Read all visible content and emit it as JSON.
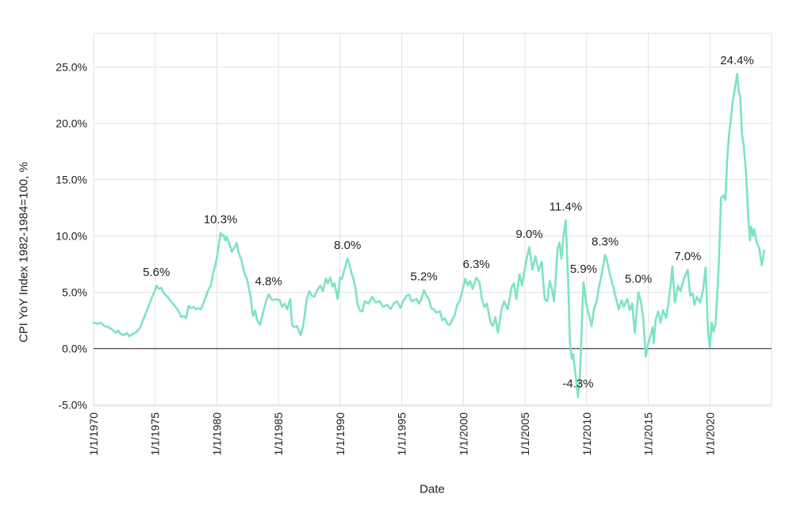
{
  "chart_data": {
    "type": "line",
    "title": "",
    "xlabel": "Date",
    "ylabel": "CPI YoY Index 1982-1984=100, %",
    "series_name": "CPI YoY",
    "line_color": "#7de3c4",
    "grid_color": "#e2e2e2",
    "zero_line_color": "#545454",
    "background_color": "#ffffff",
    "text_color": "#212121",
    "grid": true,
    "legend": "none",
    "xlim": [
      1970,
      2025
    ],
    "ylim": [
      -5.1,
      28.0
    ],
    "x_ticks": [
      {
        "year": 1970,
        "label": "1/1/1970"
      },
      {
        "year": 1975,
        "label": "1/1/1975"
      },
      {
        "year": 1980,
        "label": "1/1/1980"
      },
      {
        "year": 1985,
        "label": "1/1/1985"
      },
      {
        "year": 1990,
        "label": "1/1/1990"
      },
      {
        "year": 1995,
        "label": "1/1/1995"
      },
      {
        "year": 2000,
        "label": "1/1/2000"
      },
      {
        "year": 2005,
        "label": "1/1/2005"
      },
      {
        "year": 2010,
        "label": "1/1/2010"
      },
      {
        "year": 2015,
        "label": "1/1/2015"
      },
      {
        "year": 2020,
        "label": "1/1/2020"
      }
    ],
    "y_ticks": [
      {
        "value": -5,
        "label": "-5.0%"
      },
      {
        "value": 0,
        "label": "0.0%"
      },
      {
        "value": 5,
        "label": "5.0%"
      },
      {
        "value": 10,
        "label": "10.0%"
      },
      {
        "value": 15,
        "label": "15.0%"
      },
      {
        "value": 20,
        "label": "20.0%"
      },
      {
        "value": 25,
        "label": "25.0%"
      }
    ],
    "annotations": [
      {
        "x": 1975.1,
        "y": 5.6,
        "label": "5.6%"
      },
      {
        "x": 1980.3,
        "y": 10.3,
        "label": "10.3%"
      },
      {
        "x": 1984.2,
        "y": 4.8,
        "label": "4.8%"
      },
      {
        "x": 1990.6,
        "y": 8.0,
        "label": "8.0%"
      },
      {
        "x": 1996.8,
        "y": 5.2,
        "label": "5.2%"
      },
      {
        "x": 2001.05,
        "y": 6.3,
        "label": "6.3%"
      },
      {
        "x": 2005.35,
        "y": 9.0,
        "label": "9.0%"
      },
      {
        "x": 2008.3,
        "y": 11.4,
        "label": "11.4%"
      },
      {
        "x": 2009.3,
        "y": -4.3,
        "label": "-4.3%"
      },
      {
        "x": 2009.75,
        "y": 5.9,
        "label": "5.9%"
      },
      {
        "x": 2011.5,
        "y": 8.3,
        "label": "8.3%"
      },
      {
        "x": 2014.2,
        "y": 5.0,
        "label": "5.0%"
      },
      {
        "x": 2018.2,
        "y": 7.0,
        "label": "7.0%"
      },
      {
        "x": 2022.2,
        "y": 24.4,
        "label": "24.4%"
      }
    ],
    "points": [
      [
        1970.0,
        2.3
      ],
      [
        1970.3,
        2.2
      ],
      [
        1970.6,
        2.3
      ],
      [
        1970.9,
        2.0
      ],
      [
        1971.2,
        1.9
      ],
      [
        1971.5,
        1.7
      ],
      [
        1971.8,
        1.4
      ],
      [
        1972.0,
        1.6
      ],
      [
        1972.2,
        1.3
      ],
      [
        1972.5,
        1.2
      ],
      [
        1972.7,
        1.4
      ],
      [
        1972.9,
        1.1
      ],
      [
        1973.2,
        1.3
      ],
      [
        1973.5,
        1.5
      ],
      [
        1973.8,
        1.9
      ],
      [
        1974.0,
        2.5
      ],
      [
        1974.3,
        3.3
      ],
      [
        1974.5,
        3.9
      ],
      [
        1974.8,
        4.7
      ],
      [
        1975.0,
        5.2
      ],
      [
        1975.1,
        5.6
      ],
      [
        1975.3,
        5.3
      ],
      [
        1975.5,
        5.4
      ],
      [
        1975.7,
        4.9
      ],
      [
        1976.0,
        4.6
      ],
      [
        1976.2,
        4.3
      ],
      [
        1976.5,
        3.9
      ],
      [
        1976.8,
        3.5
      ],
      [
        1977.0,
        3.1
      ],
      [
        1977.1,
        2.8
      ],
      [
        1977.3,
        2.9
      ],
      [
        1977.5,
        2.7
      ],
      [
        1977.7,
        3.8
      ],
      [
        1977.9,
        3.6
      ],
      [
        1978.1,
        3.7
      ],
      [
        1978.3,
        3.5
      ],
      [
        1978.5,
        3.6
      ],
      [
        1978.7,
        3.5
      ],
      [
        1978.9,
        4.0
      ],
      [
        1979.1,
        4.6
      ],
      [
        1979.3,
        5.2
      ],
      [
        1979.5,
        5.6
      ],
      [
        1979.7,
        6.7
      ],
      [
        1979.9,
        7.5
      ],
      [
        1980.0,
        8.1
      ],
      [
        1980.1,
        8.8
      ],
      [
        1980.2,
        9.6
      ],
      [
        1980.3,
        10.3
      ],
      [
        1980.45,
        10.0
      ],
      [
        1980.55,
        10.1
      ],
      [
        1980.7,
        9.6
      ],
      [
        1980.8,
        9.9
      ],
      [
        1981.0,
        9.4
      ],
      [
        1981.2,
        8.6
      ],
      [
        1981.4,
        8.9
      ],
      [
        1981.6,
        9.4
      ],
      [
        1981.8,
        8.4
      ],
      [
        1982.0,
        7.9
      ],
      [
        1982.1,
        7.3
      ],
      [
        1982.3,
        6.5
      ],
      [
        1982.45,
        6.2
      ],
      [
        1982.6,
        5.3
      ],
      [
        1982.75,
        4.6
      ],
      [
        1982.85,
        3.4
      ],
      [
        1982.95,
        2.9
      ],
      [
        1983.1,
        3.4
      ],
      [
        1983.25,
        2.6
      ],
      [
        1983.4,
        2.3
      ],
      [
        1983.5,
        2.1
      ],
      [
        1983.7,
        3.0
      ],
      [
        1984.0,
        4.2
      ],
      [
        1984.2,
        4.8
      ],
      [
        1984.5,
        4.3
      ],
      [
        1984.8,
        4.4
      ],
      [
        1985.1,
        4.3
      ],
      [
        1985.3,
        3.7
      ],
      [
        1985.5,
        4.0
      ],
      [
        1985.7,
        3.5
      ],
      [
        1985.95,
        4.4
      ],
      [
        1986.1,
        2.1
      ],
      [
        1986.3,
        1.9
      ],
      [
        1986.5,
        2.0
      ],
      [
        1986.8,
        1.2
      ],
      [
        1987.0,
        2.0
      ],
      [
        1987.3,
        4.4
      ],
      [
        1987.5,
        5.1
      ],
      [
        1987.7,
        4.7
      ],
      [
        1987.9,
        4.6
      ],
      [
        1988.2,
        5.3
      ],
      [
        1988.4,
        5.6
      ],
      [
        1988.6,
        5.1
      ],
      [
        1988.85,
        6.2
      ],
      [
        1989.0,
        5.8
      ],
      [
        1989.2,
        6.3
      ],
      [
        1989.4,
        5.5
      ],
      [
        1989.55,
        5.8
      ],
      [
        1989.8,
        4.4
      ],
      [
        1990.0,
        6.3
      ],
      [
        1990.15,
        6.2
      ],
      [
        1990.35,
        7.0
      ],
      [
        1990.6,
        8.0
      ],
      [
        1990.75,
        7.5
      ],
      [
        1990.9,
        6.8
      ],
      [
        1991.1,
        6.1
      ],
      [
        1991.25,
        5.4
      ],
      [
        1991.4,
        4.0
      ],
      [
        1991.6,
        3.4
      ],
      [
        1991.8,
        3.3
      ],
      [
        1992.0,
        4.2
      ],
      [
        1992.3,
        4.0
      ],
      [
        1992.6,
        4.6
      ],
      [
        1992.9,
        4.1
      ],
      [
        1993.2,
        4.2
      ],
      [
        1993.5,
        3.7
      ],
      [
        1993.8,
        3.9
      ],
      [
        1994.1,
        3.5
      ],
      [
        1994.35,
        4.0
      ],
      [
        1994.6,
        4.2
      ],
      [
        1994.9,
        3.6
      ],
      [
        1995.1,
        4.2
      ],
      [
        1995.4,
        4.7
      ],
      [
        1995.6,
        4.8
      ],
      [
        1995.8,
        4.2
      ],
      [
        1996.0,
        4.3
      ],
      [
        1996.2,
        4.4
      ],
      [
        1996.4,
        4.0
      ],
      [
        1996.6,
        4.4
      ],
      [
        1996.8,
        5.2
      ],
      [
        1997.0,
        4.7
      ],
      [
        1997.2,
        4.4
      ],
      [
        1997.4,
        3.6
      ],
      [
        1997.6,
        3.5
      ],
      [
        1997.8,
        3.2
      ],
      [
        1998.1,
        3.3
      ],
      [
        1998.3,
        2.5
      ],
      [
        1998.5,
        2.7
      ],
      [
        1998.7,
        2.2
      ],
      [
        1998.9,
        2.1
      ],
      [
        1999.1,
        2.6
      ],
      [
        1999.3,
        3.0
      ],
      [
        1999.5,
        3.9
      ],
      [
        1999.7,
        4.2
      ],
      [
        1999.9,
        5.1
      ],
      [
        2000.15,
        6.2
      ],
      [
        2000.35,
        5.6
      ],
      [
        2000.55,
        6.0
      ],
      [
        2000.75,
        5.3
      ],
      [
        2001.05,
        6.3
      ],
      [
        2001.3,
        5.9
      ],
      [
        2001.5,
        4.4
      ],
      [
        2001.7,
        3.7
      ],
      [
        2001.9,
        4.0
      ],
      [
        2002.2,
        2.3
      ],
      [
        2002.4,
        2.0
      ],
      [
        2002.6,
        2.8
      ],
      [
        2002.8,
        1.4
      ],
      [
        2003.1,
        3.5
      ],
      [
        2003.3,
        4.2
      ],
      [
        2003.6,
        3.5
      ],
      [
        2003.9,
        5.4
      ],
      [
        2004.1,
        5.8
      ],
      [
        2004.3,
        4.4
      ],
      [
        2004.55,
        6.6
      ],
      [
        2004.75,
        5.6
      ],
      [
        2005.0,
        7.2
      ],
      [
        2005.2,
        8.3
      ],
      [
        2005.35,
        9.0
      ],
      [
        2005.6,
        7.0
      ],
      [
        2005.85,
        8.2
      ],
      [
        2006.1,
        6.9
      ],
      [
        2006.35,
        7.7
      ],
      [
        2006.6,
        4.4
      ],
      [
        2006.8,
        4.2
      ],
      [
        2007.0,
        6.0
      ],
      [
        2007.2,
        5.2
      ],
      [
        2007.35,
        4.2
      ],
      [
        2007.5,
        6.5
      ],
      [
        2007.65,
        8.9
      ],
      [
        2007.8,
        9.4
      ],
      [
        2007.95,
        8.0
      ],
      [
        2008.1,
        9.8
      ],
      [
        2008.3,
        11.4
      ],
      [
        2008.5,
        6.0
      ],
      [
        2008.65,
        0.5
      ],
      [
        2008.8,
        -0.9
      ],
      [
        2008.9,
        -0.5
      ],
      [
        2009.0,
        -1.4
      ],
      [
        2009.1,
        -2.3
      ],
      [
        2009.3,
        -4.3
      ],
      [
        2009.45,
        -2.3
      ],
      [
        2009.55,
        0.0
      ],
      [
        2009.65,
        3.5
      ],
      [
        2009.75,
        5.9
      ],
      [
        2009.95,
        4.2
      ],
      [
        2010.1,
        3.3
      ],
      [
        2010.25,
        2.8
      ],
      [
        2010.4,
        2.0
      ],
      [
        2010.6,
        3.5
      ],
      [
        2010.8,
        4.2
      ],
      [
        2011.0,
        5.5
      ],
      [
        2011.2,
        6.5
      ],
      [
        2011.5,
        8.3
      ],
      [
        2011.65,
        7.8
      ],
      [
        2011.9,
        6.5
      ],
      [
        2012.2,
        5.3
      ],
      [
        2012.6,
        3.5
      ],
      [
        2012.85,
        4.3
      ],
      [
        2013.0,
        3.7
      ],
      [
        2013.3,
        4.4
      ],
      [
        2013.5,
        3.4
      ],
      [
        2013.7,
        4.0
      ],
      [
        2013.9,
        1.4
      ],
      [
        2014.2,
        5.0
      ],
      [
        2014.4,
        4.2
      ],
      [
        2014.6,
        2.6
      ],
      [
        2014.8,
        -0.7
      ],
      [
        2015.0,
        0.5
      ],
      [
        2015.2,
        1.2
      ],
      [
        2015.35,
        1.9
      ],
      [
        2015.45,
        0.5
      ],
      [
        2015.6,
        2.6
      ],
      [
        2015.8,
        3.3
      ],
      [
        2016.0,
        2.3
      ],
      [
        2016.2,
        3.4
      ],
      [
        2016.45,
        2.7
      ],
      [
        2016.65,
        4.2
      ],
      [
        2016.8,
        5.5
      ],
      [
        2016.95,
        7.3
      ],
      [
        2017.15,
        4.1
      ],
      [
        2017.4,
        5.6
      ],
      [
        2017.6,
        5.1
      ],
      [
        2017.9,
        6.2
      ],
      [
        2018.2,
        7.0
      ],
      [
        2018.4,
        4.7
      ],
      [
        2018.6,
        4.9
      ],
      [
        2018.75,
        3.9
      ],
      [
        2018.95,
        4.6
      ],
      [
        2019.2,
        4.1
      ],
      [
        2019.45,
        5.2
      ],
      [
        2019.65,
        7.2
      ],
      [
        2019.85,
        1.5
      ],
      [
        2020.0,
        0.1
      ],
      [
        2020.15,
        2.3
      ],
      [
        2020.3,
        1.5
      ],
      [
        2020.45,
        2.2
      ],
      [
        2020.6,
        4.9
      ],
      [
        2020.75,
        8.2
      ],
      [
        2020.9,
        13.4
      ],
      [
        2021.1,
        13.6
      ],
      [
        2021.25,
        13.2
      ],
      [
        2021.4,
        16.7
      ],
      [
        2021.55,
        19.0
      ],
      [
        2021.7,
        20.4
      ],
      [
        2021.85,
        22.0
      ],
      [
        2022.0,
        22.9
      ],
      [
        2022.2,
        24.4
      ],
      [
        2022.35,
        22.7
      ],
      [
        2022.45,
        22.5
      ],
      [
        2022.6,
        19.0
      ],
      [
        2022.75,
        18.0
      ],
      [
        2022.95,
        15.3
      ],
      [
        2023.1,
        11.8
      ],
      [
        2023.25,
        9.6
      ],
      [
        2023.35,
        10.8
      ],
      [
        2023.5,
        10.0
      ],
      [
        2023.6,
        10.6
      ],
      [
        2023.8,
        9.4
      ],
      [
        2024.0,
        8.9
      ],
      [
        2024.2,
        7.4
      ],
      [
        2024.4,
        8.7
      ]
    ]
  },
  "axes": {
    "x_title": "Date",
    "y_title": "CPI YoY Index 1982-1984=100, %"
  }
}
